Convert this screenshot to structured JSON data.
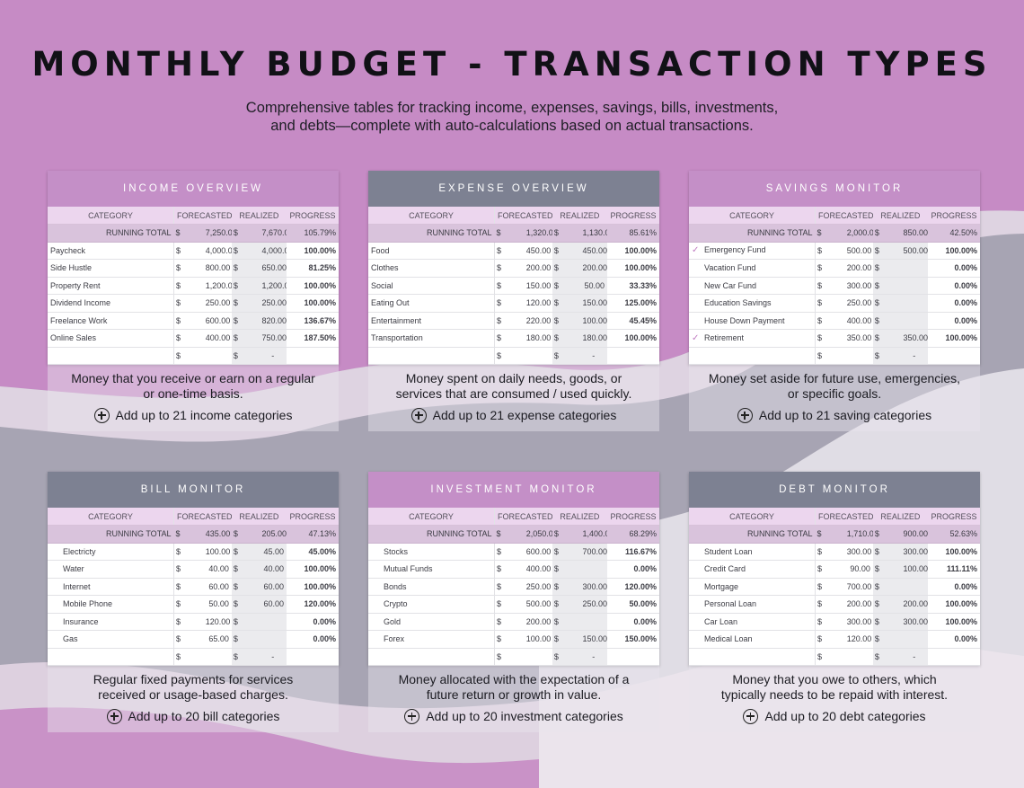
{
  "header": {
    "title": "MONTHLY BUDGET - TRANSACTION TYPES",
    "subtitle_line1": "Comprehensive tables for tracking income, expenses, savings, bills, investments,",
    "subtitle_line2": "and debts—complete with auto-calculations based on actual transactions."
  },
  "columns": {
    "category": "CATEGORY",
    "forecasted": "FORECASTED",
    "realized": "REALIZED",
    "progress": "PROGRESS"
  },
  "running_total_label": "RUNNING TOTAL",
  "currency": "$",
  "colors": {
    "purple": "#c48fc7",
    "gray": "#7d8192",
    "total_row": "#d9c3dc",
    "check": "#c07cc2"
  },
  "icons": {
    "check": "check-icon",
    "add": "add-circle-icon"
  },
  "cards": {
    "income": {
      "heading": "INCOME OVERVIEW",
      "total": {
        "forecasted": "7,250.00",
        "realized": "7,670.00",
        "progress": "105.79%"
      },
      "rows": [
        {
          "category": "Paycheck",
          "forecasted": "4,000.00",
          "realized": "4,000.00",
          "progress": "100.00%"
        },
        {
          "category": "Side Hustle",
          "forecasted": "800.00",
          "realized": "650.00",
          "progress": "81.25%"
        },
        {
          "category": "Property Rent",
          "forecasted": "1,200.00",
          "realized": "1,200.00",
          "progress": "100.00%"
        },
        {
          "category": "Dividend Income",
          "forecasted": "250.00",
          "realized": "250.00",
          "progress": "100.00%"
        },
        {
          "category": "Freelance Work",
          "forecasted": "600.00",
          "realized": "820.00",
          "progress": "136.67%"
        },
        {
          "category": "Online Sales",
          "forecasted": "400.00",
          "realized": "750.00",
          "progress": "187.50%"
        }
      ],
      "empty_realized": "-",
      "desc_line1": "Money that you receive or earn on a regular",
      "desc_line2": "or one-time basis.",
      "add_label": "Add up to 21 income categories"
    },
    "expense": {
      "heading": "EXPENSE OVERVIEW",
      "total": {
        "forecasted": "1,320.00",
        "realized": "1,130.00",
        "progress": "85.61%"
      },
      "rows": [
        {
          "category": "Food",
          "forecasted": "450.00",
          "realized": "450.00",
          "progress": "100.00%"
        },
        {
          "category": "Clothes",
          "forecasted": "200.00",
          "realized": "200.00",
          "progress": "100.00%"
        },
        {
          "category": "Social",
          "forecasted": "150.00",
          "realized": "50.00",
          "progress": "33.33%"
        },
        {
          "category": "Eating Out",
          "forecasted": "120.00",
          "realized": "150.00",
          "progress": "125.00%"
        },
        {
          "category": "Entertainment",
          "forecasted": "220.00",
          "realized": "100.00",
          "progress": "45.45%"
        },
        {
          "category": "Transportation",
          "forecasted": "180.00",
          "realized": "180.00",
          "progress": "100.00%"
        }
      ],
      "empty_realized": "-",
      "desc_line1": "Money spent on daily needs, goods, or",
      "desc_line2": "services that are consumed / used quickly.",
      "add_label": "Add up to 21 expense categories"
    },
    "savings": {
      "heading": "SAVINGS MONITOR",
      "total": {
        "forecasted": "2,000.00",
        "realized": "850.00",
        "progress": "42.50%"
      },
      "rows": [
        {
          "check": "✓",
          "category": "Emergency Fund",
          "forecasted": "500.00",
          "realized": "500.00",
          "progress": "100.00%"
        },
        {
          "check": "",
          "category": "Vacation Fund",
          "forecasted": "200.00",
          "realized": "-",
          "progress": "0.00%"
        },
        {
          "check": "",
          "category": "New Car Fund",
          "forecasted": "300.00",
          "realized": "-",
          "progress": "0.00%"
        },
        {
          "check": "",
          "category": "Education Savings",
          "forecasted": "250.00",
          "realized": "-",
          "progress": "0.00%"
        },
        {
          "check": "",
          "category": "House Down Payment",
          "forecasted": "400.00",
          "realized": "-",
          "progress": "0.00%"
        },
        {
          "check": "✓",
          "category": "Retirement",
          "forecasted": "350.00",
          "realized": "350.00",
          "progress": "100.00%"
        }
      ],
      "empty_realized": "-",
      "desc_line1": "Money set aside for future use, emergencies,",
      "desc_line2": "or specific goals.",
      "add_label": "Add up to 21 saving categories"
    },
    "bill": {
      "heading": "BILL MONITOR",
      "total": {
        "forecasted": "435.00",
        "realized": "205.00",
        "progress": "47.13%"
      },
      "rows": [
        {
          "category": "Electricty",
          "forecasted": "100.00",
          "realized": "45.00",
          "progress": "45.00%"
        },
        {
          "category": "Water",
          "forecasted": "40.00",
          "realized": "40.00",
          "progress": "100.00%"
        },
        {
          "category": "Internet",
          "forecasted": "60.00",
          "realized": "60.00",
          "progress": "100.00%"
        },
        {
          "category": "Mobile Phone",
          "forecasted": "50.00",
          "realized": "60.00",
          "progress": "120.00%"
        },
        {
          "category": "Insurance",
          "forecasted": "120.00",
          "realized": "-",
          "progress": "0.00%"
        },
        {
          "category": "Gas",
          "forecasted": "65.00",
          "realized": "-",
          "progress": "0.00%"
        }
      ],
      "empty_realized": "-",
      "desc_line1": "Regular fixed payments for services",
      "desc_line2": "received or usage-based charges.",
      "add_label": "Add up to 20 bill categories"
    },
    "investment": {
      "heading": "INVESTMENT MONITOR",
      "total": {
        "forecasted": "2,050.00",
        "realized": "1,400.00",
        "progress": "68.29%"
      },
      "rows": [
        {
          "category": "Stocks",
          "forecasted": "600.00",
          "realized": "700.00",
          "progress": "116.67%"
        },
        {
          "category": "Mutual Funds",
          "forecasted": "400.00",
          "realized": "-",
          "progress": "0.00%"
        },
        {
          "category": "Bonds",
          "forecasted": "250.00",
          "realized": "300.00",
          "progress": "120.00%"
        },
        {
          "category": "Crypto",
          "forecasted": "500.00",
          "realized": "250.00",
          "progress": "50.00%"
        },
        {
          "category": "Gold",
          "forecasted": "200.00",
          "realized": "-",
          "progress": "0.00%"
        },
        {
          "category": "Forex",
          "forecasted": "100.00",
          "realized": "150.00",
          "progress": "150.00%"
        }
      ],
      "empty_realized": "-",
      "desc_line1": "Money allocated with the expectation of a",
      "desc_line2": "future return or growth in value.",
      "add_label": "Add up to 20 investment categories"
    },
    "debt": {
      "heading": "DEBT MONITOR",
      "total": {
        "forecasted": "1,710.00",
        "realized": "900.00",
        "progress": "52.63%"
      },
      "rows": [
        {
          "category": "Student Loan",
          "forecasted": "300.00",
          "realized": "300.00",
          "progress": "100.00%"
        },
        {
          "category": "Credit Card",
          "forecasted": "90.00",
          "realized": "100.00",
          "progress": "111.11%"
        },
        {
          "category": "Mortgage",
          "forecasted": "700.00",
          "realized": "-",
          "progress": "0.00%"
        },
        {
          "category": "Personal Loan",
          "forecasted": "200.00",
          "realized": "200.00",
          "progress": "100.00%"
        },
        {
          "category": "Car Loan",
          "forecasted": "300.00",
          "realized": "300.00",
          "progress": "100.00%"
        },
        {
          "category": "Medical Loan",
          "forecasted": "120.00",
          "realized": "-",
          "progress": "0.00%"
        }
      ],
      "empty_realized": "-",
      "desc_line1": "Money that you owe to others, which",
      "desc_line2": "typically needs to be repaid with interest.",
      "add_label": "Add up to 20 debt categories"
    }
  }
}
